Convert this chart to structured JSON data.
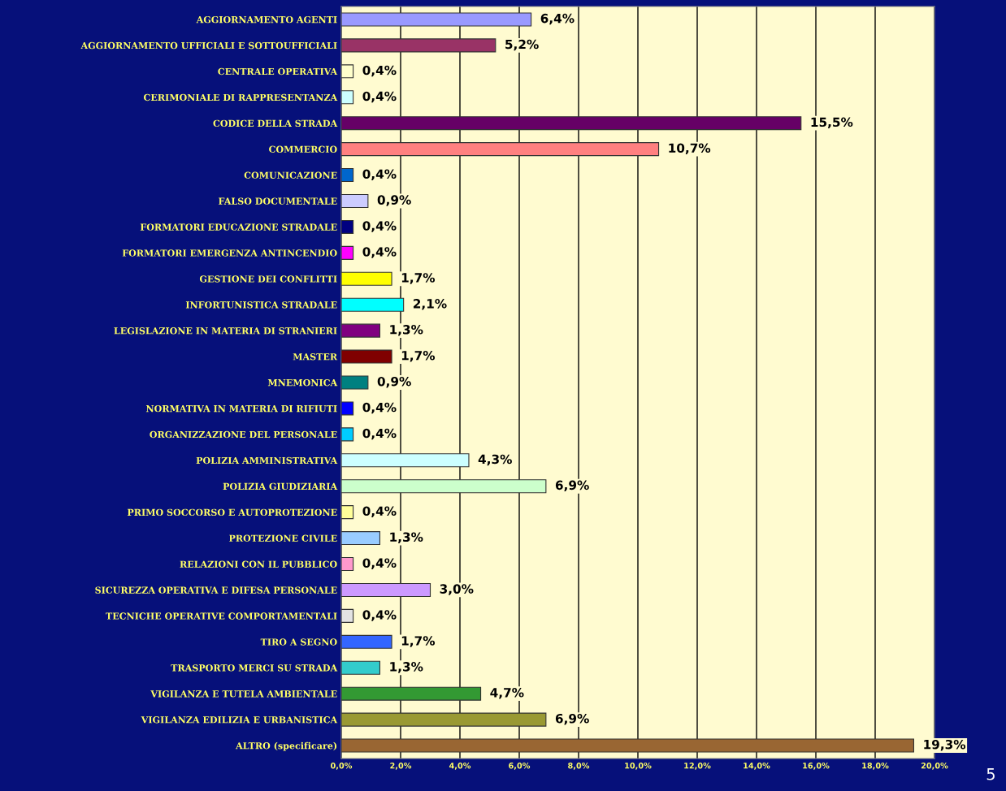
{
  "chart_data": {
    "type": "bar",
    "orientation": "horizontal",
    "categories": [
      "AGGIORNAMENTO AGENTI",
      "AGGIORNAMENTO UFFICIALI E SOTTOUFFICIALI",
      "CENTRALE OPERATIVA",
      "CERIMONIALE DI RAPPRESENTANZA",
      "CODICE DELLA STRADA",
      "COMMERCIO",
      "COMUNICAZIONE",
      "FALSO DOCUMENTALE",
      "FORMATORI EDUCAZIONE STRADALE",
      "FORMATORI EMERGENZA ANTINCENDIO",
      "GESTIONE DEI CONFLITTI",
      "INFORTUNISTICA STRADALE",
      "LEGISLAZIONE IN MATERIA DI STRANIERI",
      "MASTER",
      "MNEMONICA",
      "NORMATIVA IN MATERIA DI RIFIUTI",
      "ORGANIZZAZIONE DEL PERSONALE",
      "POLIZIA AMMINISTRATIVA",
      "POLIZIA GIUDIZIARIA",
      "PRIMO SOCCORSO E AUTOPROTEZIONE",
      "PROTEZIONE CIVILE",
      "RELAZIONI CON IL PUBBLICO",
      "SICUREZZA OPERATIVA E DIFESA PERSONALE",
      "TECNICHE OPERATIVE COMPORTAMENTALI",
      "TIRO A SEGNO",
      "TRASPORTO MERCI SU STRADA",
      "VIGILANZA E TUTELA AMBIENTALE",
      "VIGILANZA EDILIZIA E URBANISTICA",
      "ALTRO (specificare)"
    ],
    "values": [
      6.4,
      5.2,
      0.4,
      0.4,
      15.5,
      10.7,
      0.4,
      0.9,
      0.4,
      0.4,
      1.7,
      2.1,
      1.3,
      1.7,
      0.9,
      0.4,
      0.4,
      4.3,
      6.9,
      0.4,
      1.3,
      0.4,
      3.0,
      0.4,
      1.7,
      1.3,
      4.7,
      6.9,
      19.3
    ],
    "value_labels": [
      "6,4%",
      "5,2%",
      "0,4%",
      "0,4%",
      "15,5%",
      "10,7%",
      "0,4%",
      "0,9%",
      "0,4%",
      "0,4%",
      "1,7%",
      "2,1%",
      "1,3%",
      "1,7%",
      "0,9%",
      "0,4%",
      "0,4%",
      "4,3%",
      "6,9%",
      "0,4%",
      "1,3%",
      "0,4%",
      "3,0%",
      "0,4%",
      "1,7%",
      "1,3%",
      "4,7%",
      "6,9%",
      "19,3%"
    ],
    "colors": [
      "#9999ff",
      "#993366",
      "#ffffcc",
      "#ccffff",
      "#660066",
      "#ff8080",
      "#0066cc",
      "#ccccff",
      "#000080",
      "#ff00ff",
      "#ffff00",
      "#00ffff",
      "#800080",
      "#800000",
      "#008080",
      "#0000ff",
      "#00ccff",
      "#ccffff",
      "#ccffcc",
      "#ffff99",
      "#99ccff",
      "#ff99cc",
      "#cc99ff",
      "#e3e3e3",
      "#3366ff",
      "#33cccc",
      "#339933",
      "#999933",
      "#996633"
    ],
    "xlim": [
      0,
      20
    ],
    "xticks": [
      {
        "value": 0,
        "label": "0,0%"
      },
      {
        "value": 2,
        "label": "2,0%"
      },
      {
        "value": 4,
        "label": "4,0%"
      },
      {
        "value": 6,
        "label": "6,0%"
      },
      {
        "value": 8,
        "label": "8,0%"
      },
      {
        "value": 10,
        "label": "10,0%"
      },
      {
        "value": 12,
        "label": "12,0%"
      },
      {
        "value": 14,
        "label": "14,0%"
      },
      {
        "value": 16,
        "label": "16,0%"
      },
      {
        "value": 18,
        "label": "18,0%"
      },
      {
        "value": 20,
        "label": "20,0%"
      }
    ],
    "grid": "x",
    "annotations": [
      "5"
    ]
  }
}
